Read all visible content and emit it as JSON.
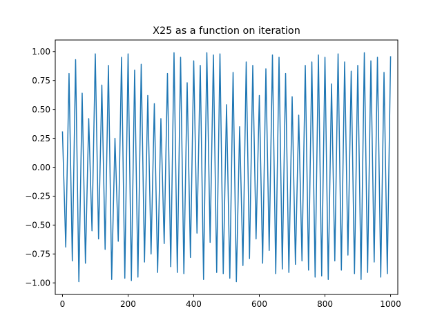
{
  "chart_data": {
    "type": "line",
    "title": "X25 as a function on iteration",
    "xlabel": "",
    "ylabel": "",
    "xlim": [
      -22,
      1022
    ],
    "ylim": [
      -1.1,
      1.1
    ],
    "xticks": [
      0,
      200,
      400,
      600,
      800,
      1000
    ],
    "xtick_labels": [
      "0",
      "200",
      "400",
      "600",
      "800",
      "1000"
    ],
    "yticks": [
      -1.0,
      -0.75,
      -0.5,
      -0.25,
      0.0,
      0.25,
      0.5,
      0.75,
      1.0
    ],
    "ytick_labels": [
      "−1.00",
      "−0.75",
      "−0.50",
      "−0.25",
      "0.00",
      "0.25",
      "0.50",
      "0.75",
      "1.00"
    ],
    "grid": false,
    "legend": "none",
    "line_color": "#1f77b4",
    "series": [
      {
        "x_start": 0,
        "x_step": 10,
        "values": [
          0.31,
          -0.69,
          0.81,
          -0.81,
          0.93,
          -0.99,
          0.64,
          -0.83,
          0.42,
          -0.55,
          0.98,
          -0.62,
          0.71,
          -0.71,
          0.88,
          -0.97,
          0.25,
          -0.64,
          0.95,
          -0.96,
          0.98,
          -0.98,
          0.84,
          -0.95,
          0.89,
          -0.82,
          0.62,
          -0.75,
          0.55,
          -0.91,
          0.42,
          -0.66,
          0.81,
          -0.86,
          0.99,
          -0.91,
          0.95,
          -0.92,
          0.73,
          -0.78,
          0.92,
          -0.57,
          0.88,
          -0.97,
          0.99,
          -0.65,
          0.97,
          -0.91,
          0.98,
          -0.92,
          0.54,
          -0.96,
          0.82,
          -0.99,
          0.35,
          -0.85,
          0.91,
          -0.79,
          0.88,
          -0.62,
          0.62,
          -0.83,
          0.85,
          -0.72,
          0.97,
          -0.92,
          0.95,
          -0.88,
          0.81,
          -0.91,
          0.61,
          -0.84,
          0.45,
          -0.81,
          0.88,
          -0.89,
          0.91,
          -0.95,
          0.97,
          -0.94,
          0.95,
          -0.97,
          0.72,
          -0.81,
          0.98,
          -0.89,
          0.91,
          -0.76,
          0.83,
          -0.92,
          0.88,
          -0.97,
          0.99,
          -0.91,
          0.92,
          -0.82,
          0.95,
          -0.95,
          0.82,
          -0.92,
          0.96
        ]
      }
    ]
  }
}
